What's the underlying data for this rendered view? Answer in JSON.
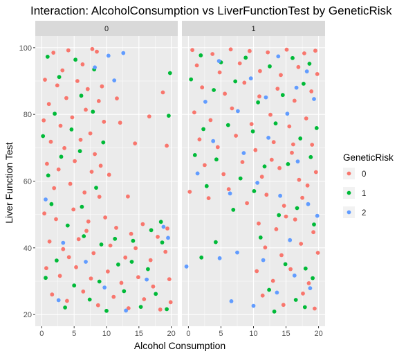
{
  "chart_data": {
    "type": "scatter",
    "title": "Interaction: AlcoholConsumption vs LiverFunctionTest by GeneticRisk",
    "xlabel": "Alcohol Consumption",
    "ylabel": "Liver Function Test",
    "xlim": [
      -1,
      21
    ],
    "ylim": [
      16.5,
      103.5
    ],
    "x_ticks": [
      0,
      5,
      10,
      15,
      20
    ],
    "y_ticks": [
      20,
      40,
      60,
      80,
      100
    ],
    "facets": [
      "0",
      "1"
    ],
    "legend": {
      "title": "GeneticRisk",
      "position": "right",
      "entries": [
        "0",
        "1",
        "2"
      ],
      "colors": [
        "#F8766D",
        "#00BA38",
        "#619CFF"
      ]
    },
    "panel_background": "#EBEBEB",
    "grid": true,
    "series": [
      {
        "name": "0",
        "facet0": [
          [
            1.8,
            98.5
          ],
          [
            4.1,
            99.2
          ],
          [
            7.8,
            99.6
          ],
          [
            8.5,
            98.8
          ],
          [
            6.3,
            95.0
          ],
          [
            3.2,
            93.2
          ],
          [
            0.5,
            90.4
          ],
          [
            2.4,
            88.7
          ],
          [
            5.5,
            90.0
          ],
          [
            7.1,
            87.6
          ],
          [
            9.3,
            88.4
          ],
          [
            1.1,
            83.1
          ],
          [
            3.8,
            84.9
          ],
          [
            6.8,
            81.4
          ],
          [
            8.8,
            84.0
          ],
          [
            0.3,
            78.2
          ],
          [
            2.9,
            76.6
          ],
          [
            4.7,
            79.1
          ],
          [
            7.5,
            74.3
          ],
          [
            9.6,
            77.8
          ],
          [
            1.4,
            71.8
          ],
          [
            3.5,
            69.9
          ],
          [
            6.0,
            72.4
          ],
          [
            8.2,
            68.1
          ],
          [
            0.8,
            65.2
          ],
          [
            2.6,
            63.5
          ],
          [
            5.1,
            66.0
          ],
          [
            7.7,
            62.8
          ],
          [
            9.1,
            64.6
          ],
          [
            1.9,
            57.9
          ],
          [
            4.4,
            59.2
          ],
          [
            6.6,
            56.6
          ],
          [
            8.9,
            55.3
          ],
          [
            0.4,
            50.3
          ],
          [
            2.2,
            48.6
          ],
          [
            4.9,
            51.5
          ],
          [
            7.2,
            47.9
          ],
          [
            9.8,
            49.1
          ],
          [
            11.5,
            46.0
          ],
          [
            13.8,
            44.2
          ],
          [
            15.6,
            47.1
          ],
          [
            17.9,
            43.3
          ],
          [
            19.4,
            45.8
          ],
          [
            1.2,
            41.9
          ],
          [
            3.3,
            39.6
          ],
          [
            5.7,
            42.6
          ],
          [
            8.0,
            38.4
          ],
          [
            10.6,
            40.7
          ],
          [
            12.9,
            37.1
          ],
          [
            14.5,
            39.9
          ],
          [
            16.8,
            36.3
          ],
          [
            19.1,
            38.8
          ],
          [
            0.7,
            33.9
          ],
          [
            2.8,
            31.6
          ],
          [
            5.3,
            34.2
          ],
          [
            7.6,
            30.8
          ],
          [
            10.2,
            32.9
          ],
          [
            12.3,
            29.5
          ],
          [
            14.9,
            31.2
          ],
          [
            17.2,
            28.4
          ],
          [
            19.7,
            30.6
          ],
          [
            1.6,
            26.0
          ],
          [
            3.9,
            24.1
          ],
          [
            6.4,
            26.9
          ],
          [
            8.7,
            22.8
          ],
          [
            11.1,
            25.3
          ],
          [
            13.4,
            21.9
          ],
          [
            15.8,
            24.6
          ],
          [
            18.3,
            21.5
          ],
          [
            19.9,
            23.7
          ],
          [
            16.6,
            79.4
          ],
          [
            14.4,
            71.3
          ],
          [
            18.7,
            86.6
          ],
          [
            12.1,
            77.5
          ],
          [
            11.6,
            84.8
          ],
          [
            19.3,
            70.6
          ],
          [
            10.4,
            61.9
          ],
          [
            13.3,
            55.4
          ],
          [
            6.9,
            45.1
          ],
          [
            4.2,
            37.2
          ]
        ],
        "facet1": [
          [
            0.6,
            99.3
          ],
          [
            3.7,
            98.1
          ],
          [
            6.5,
            99.5
          ],
          [
            9.4,
            99.0
          ],
          [
            12.2,
            98.6
          ],
          [
            15.1,
            99.4
          ],
          [
            17.8,
            98.3
          ],
          [
            19.5,
            99.1
          ],
          [
            1.3,
            94.7
          ],
          [
            4.8,
            92.6
          ],
          [
            7.9,
            95.3
          ],
          [
            11.0,
            93.0
          ],
          [
            14.2,
            91.8
          ],
          [
            16.9,
            94.2
          ],
          [
            19.8,
            92.1
          ],
          [
            2.1,
            88.1
          ],
          [
            5.6,
            86.2
          ],
          [
            8.6,
            89.5
          ],
          [
            10.9,
            85.4
          ],
          [
            13.7,
            87.7
          ],
          [
            16.3,
            84.1
          ],
          [
            18.9,
            86.9
          ],
          [
            0.9,
            80.6
          ],
          [
            3.4,
            78.3
          ],
          [
            6.7,
            81.8
          ],
          [
            9.7,
            77.1
          ],
          [
            12.6,
            79.9
          ],
          [
            15.5,
            76.4
          ],
          [
            18.1,
            78.8
          ],
          [
            1.7,
            72.5
          ],
          [
            4.5,
            70.2
          ],
          [
            7.3,
            73.6
          ],
          [
            10.3,
            69.3
          ],
          [
            13.1,
            71.7
          ],
          [
            15.9,
            68.5
          ],
          [
            19.0,
            70.9
          ],
          [
            2.5,
            64.8
          ],
          [
            5.4,
            62.1
          ],
          [
            8.3,
            65.7
          ],
          [
            11.3,
            61.3
          ],
          [
            14.0,
            63.9
          ],
          [
            17.0,
            60.4
          ],
          [
            19.6,
            62.7
          ],
          [
            0.2,
            56.8
          ],
          [
            3.1,
            54.9
          ],
          [
            6.2,
            57.6
          ],
          [
            9.0,
            53.4
          ],
          [
            12.0,
            55.9
          ],
          [
            14.7,
            52.6
          ],
          [
            17.5,
            55.0
          ],
          [
            10.8,
            47.3
          ],
          [
            13.5,
            45.6
          ],
          [
            16.4,
            48.5
          ],
          [
            19.2,
            44.7
          ],
          [
            11.8,
            40.1
          ],
          [
            14.3,
            37.8
          ],
          [
            17.3,
            41.2
          ],
          [
            19.9,
            38.5
          ],
          [
            10.5,
            33.0
          ],
          [
            13.0,
            30.1
          ],
          [
            15.7,
            33.6
          ],
          [
            18.5,
            29.4
          ],
          [
            11.4,
            25.7
          ],
          [
            14.6,
            22.9
          ],
          [
            17.6,
            26.3
          ],
          [
            19.4,
            21.8
          ],
          [
            16.1,
            71.0
          ],
          [
            12.8,
            66.4
          ],
          [
            18.3,
            58.7
          ],
          [
            15.0,
            49.4
          ]
        ]
      },
      {
        "name": "1",
        "facet0": [
          [
            0.9,
            97.3
          ],
          [
            5.2,
            96.4
          ],
          [
            8.1,
            93.5
          ],
          [
            2.7,
            91.2
          ],
          [
            6.1,
            85.6
          ],
          [
            0.2,
            73.5
          ],
          [
            3.0,
            67.3
          ],
          [
            5.9,
            69.0
          ],
          [
            8.4,
            58.0
          ],
          [
            1.5,
            53.1
          ],
          [
            4.0,
            46.7
          ],
          [
            6.5,
            43.5
          ],
          [
            9.2,
            41.0
          ],
          [
            11.8,
            35.0
          ],
          [
            14.1,
            42.1
          ],
          [
            16.4,
            33.6
          ],
          [
            18.6,
            41.6
          ],
          [
            19.8,
            92.4
          ],
          [
            19.6,
            79.6
          ],
          [
            2.3,
            36.2
          ],
          [
            5.0,
            28.7
          ],
          [
            7.4,
            24.5
          ],
          [
            10.0,
            21.1
          ],
          [
            12.7,
            27.0
          ],
          [
            15.3,
            22.3
          ],
          [
            17.6,
            26.2
          ],
          [
            19.3,
            21.6
          ],
          [
            0.6,
            31.0
          ],
          [
            3.6,
            22.1
          ],
          [
            8.9,
            29.9
          ],
          [
            13.9,
            35.8
          ],
          [
            16.9,
            45.3
          ],
          [
            11.3,
            42.7
          ],
          [
            6.2,
            52.3
          ],
          [
            1.0,
            61.7
          ],
          [
            4.6,
            75.5
          ],
          [
            7.9,
            80.8
          ],
          [
            2.0,
            80.2
          ],
          [
            9.5,
            71.6
          ],
          [
            18.4,
            47.8
          ]
        ],
        "facet1": [
          [
            1.9,
            97.7
          ],
          [
            5.0,
            95.6
          ],
          [
            8.8,
            97.0
          ],
          [
            12.5,
            94.4
          ],
          [
            16.0,
            96.9
          ],
          [
            18.6,
            95.2
          ],
          [
            0.4,
            90.5
          ],
          [
            3.9,
            87.3
          ],
          [
            7.2,
            89.9
          ],
          [
            10.7,
            83.6
          ],
          [
            14.5,
            85.8
          ],
          [
            17.7,
            89.2
          ],
          [
            2.3,
            75.6
          ],
          [
            6.1,
            76.8
          ],
          [
            9.9,
            74.9
          ],
          [
            13.4,
            77.3
          ],
          [
            17.2,
            72.8
          ],
          [
            19.7,
            75.9
          ],
          [
            1.0,
            67.8
          ],
          [
            4.3,
            66.5
          ],
          [
            8.0,
            60.8
          ],
          [
            11.7,
            64.4
          ],
          [
            15.3,
            65.1
          ],
          [
            18.8,
            67.2
          ],
          [
            2.8,
            58.5
          ],
          [
            6.9,
            51.4
          ],
          [
            10.1,
            57.0
          ],
          [
            13.9,
            49.8
          ],
          [
            16.7,
            51.9
          ],
          [
            19.3,
            47.0
          ],
          [
            4.2,
            41.7
          ],
          [
            11.1,
            43.1
          ],
          [
            14.9,
            35.1
          ],
          [
            18.0,
            33.8
          ],
          [
            12.4,
            27.4
          ],
          [
            16.5,
            24.4
          ],
          [
            19.1,
            30.9
          ],
          [
            2.0,
            37.1
          ],
          [
            13.2,
            20.9
          ],
          [
            17.9,
            22.2
          ]
        ]
      },
      {
        "name": "2",
        "facet0": [
          [
            8.2,
            94.1
          ],
          [
            10.3,
            97.6
          ],
          [
            12.6,
            98.4
          ],
          [
            11.2,
            90.2
          ],
          [
            0.6,
            54.5
          ],
          [
            6.8,
            35.8
          ],
          [
            3.3,
            41.5
          ],
          [
            18.8,
            46.3
          ],
          [
            16.2,
            30.5
          ],
          [
            9.7,
            28.1
          ],
          [
            13.0,
            21.2
          ],
          [
            2.6,
            24.3
          ],
          [
            19.5,
            43.0
          ]
        ],
        "facet1": [
          [
            4.7,
            96.0
          ],
          [
            9.6,
            90.8
          ],
          [
            13.8,
            97.4
          ],
          [
            16.6,
            88.0
          ],
          [
            18.2,
            92.9
          ],
          [
            2.6,
            83.8
          ],
          [
            7.6,
            81.0
          ],
          [
            11.9,
            85.1
          ],
          [
            15.2,
            80.2
          ],
          [
            19.3,
            84.6
          ],
          [
            3.8,
            72.0
          ],
          [
            8.5,
            68.4
          ],
          [
            12.3,
            73.0
          ],
          [
            16.8,
            65.9
          ],
          [
            1.4,
            62.3
          ],
          [
            6.4,
            56.3
          ],
          [
            10.6,
            59.5
          ],
          [
            14.1,
            55.6
          ],
          [
            18.4,
            53.1
          ],
          [
            -0.3,
            34.4
          ],
          [
            4.8,
            36.9
          ],
          [
            7.5,
            38.6
          ],
          [
            11.5,
            36.3
          ],
          [
            15.6,
            42.3
          ],
          [
            19.8,
            49.6
          ],
          [
            13.6,
            26.6
          ],
          [
            16.3,
            31.7
          ],
          [
            18.7,
            27.9
          ],
          [
            6.6,
            24.0
          ],
          [
            10.0,
            22.6
          ]
        ]
      }
    ]
  }
}
